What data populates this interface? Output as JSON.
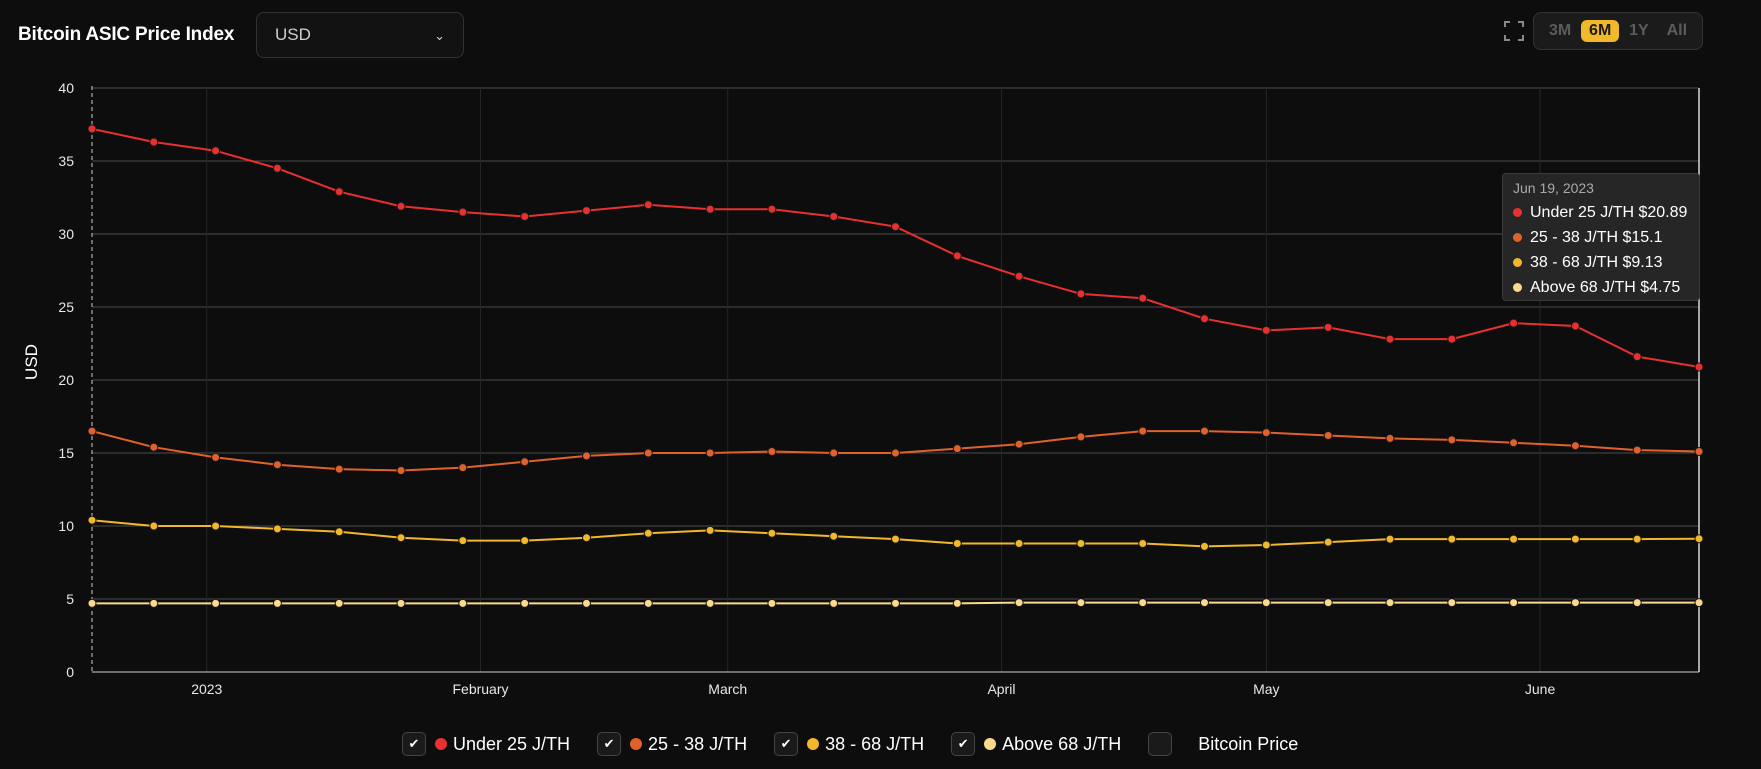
{
  "header": {
    "title": "Bitcoin ASIC Price Index",
    "currency_select": {
      "value": "USD",
      "icon": "chevron-down-icon"
    },
    "expand_icon": "expand-icon",
    "ranges": [
      {
        "label": "3M",
        "active": false
      },
      {
        "label": "6M",
        "active": true
      },
      {
        "label": "1Y",
        "active": false
      },
      {
        "label": "All",
        "active": false
      }
    ]
  },
  "colors": {
    "background": "#0d0d0d",
    "accent": "#f1b82c",
    "series": [
      "#e8302f",
      "#e0612c",
      "#f1b82c",
      "#fbd98d"
    ]
  },
  "tooltip": {
    "date": "Jun 19, 2023",
    "rows": [
      {
        "label": "Under 25 J/TH $20.89",
        "color": "#e8302f"
      },
      {
        "label": "25 - 38 J/TH $15.1",
        "color": "#e0612c"
      },
      {
        "label": "38 - 68 J/TH $9.13",
        "color": "#f1b82c"
      },
      {
        "label": "Above 68 J/TH $4.75",
        "color": "#fbd98d"
      }
    ]
  },
  "legend": [
    {
      "label": "Under 25 J/TH",
      "checked": true,
      "color": "#e8302f"
    },
    {
      "label": "25 - 38 J/TH",
      "checked": true,
      "color": "#e0612c"
    },
    {
      "label": "38 - 68 J/TH",
      "checked": true,
      "color": "#f1b82c"
    },
    {
      "label": "Above 68 J/TH",
      "checked": true,
      "color": "#fbd98d"
    },
    {
      "label": "Bitcoin Price",
      "checked": false,
      "color": ""
    }
  ],
  "chart_data": {
    "type": "line",
    "title": "Bitcoin ASIC Price Index",
    "ylabel": "USD",
    "xlabel": "",
    "ylim": [
      0,
      40
    ],
    "y_ticks": [
      0,
      5,
      10,
      15,
      20,
      25,
      30,
      35,
      40
    ],
    "xlim": [
      "2022-12-19",
      "2023-06-19"
    ],
    "x_ticks": [
      {
        "date": "2023-01-01",
        "label": "2023"
      },
      {
        "date": "2023-02-01",
        "label": "February"
      },
      {
        "date": "2023-03-01",
        "label": "March"
      },
      {
        "date": "2023-04-01",
        "label": "April"
      },
      {
        "date": "2023-05-01",
        "label": "May"
      },
      {
        "date": "2023-06-01",
        "label": "June"
      }
    ],
    "grid": true,
    "legend_position": "bottom",
    "x": [
      "2022-12-19",
      "2022-12-26",
      "2023-01-02",
      "2023-01-09",
      "2023-01-16",
      "2023-01-23",
      "2023-01-30",
      "2023-02-06",
      "2023-02-13",
      "2023-02-20",
      "2023-02-27",
      "2023-03-06",
      "2023-03-13",
      "2023-03-20",
      "2023-03-27",
      "2023-04-03",
      "2023-04-10",
      "2023-04-17",
      "2023-04-24",
      "2023-05-01",
      "2023-05-08",
      "2023-05-15",
      "2023-05-22",
      "2023-05-29",
      "2023-06-05",
      "2023-06-12",
      "2023-06-19"
    ],
    "series": [
      {
        "name": "Under 25 J/TH",
        "color": "#e8302f",
        "values": [
          37.2,
          36.3,
          35.7,
          34.5,
          32.9,
          31.9,
          31.5,
          31.2,
          31.6,
          32.0,
          31.7,
          31.7,
          31.2,
          30.5,
          28.5,
          27.1,
          25.9,
          25.6,
          24.2,
          23.4,
          23.6,
          22.8,
          22.8,
          23.9,
          23.7,
          21.6,
          20.89
        ]
      },
      {
        "name": "25 - 38 J/TH",
        "color": "#e0612c",
        "values": [
          16.5,
          15.4,
          14.7,
          14.2,
          13.9,
          13.8,
          14.0,
          14.4,
          14.8,
          15.0,
          15.0,
          15.1,
          15.0,
          15.0,
          15.3,
          15.6,
          16.1,
          16.5,
          16.5,
          16.4,
          16.2,
          16.0,
          15.9,
          15.7,
          15.5,
          15.2,
          15.1
        ]
      },
      {
        "name": "38 - 68 J/TH",
        "color": "#f1b82c",
        "values": [
          10.4,
          10.0,
          10.0,
          9.8,
          9.6,
          9.2,
          9.0,
          9.0,
          9.2,
          9.5,
          9.7,
          9.5,
          9.3,
          9.1,
          8.8,
          8.8,
          8.8,
          8.8,
          8.6,
          8.7,
          8.9,
          9.1,
          9.1,
          9.1,
          9.1,
          9.1,
          9.13
        ]
      },
      {
        "name": "Above 68 J/TH",
        "color": "#fbd98d",
        "values": [
          4.7,
          4.7,
          4.7,
          4.7,
          4.7,
          4.7,
          4.7,
          4.7,
          4.7,
          4.7,
          4.7,
          4.7,
          4.7,
          4.7,
          4.7,
          4.75,
          4.75,
          4.75,
          4.75,
          4.75,
          4.75,
          4.75,
          4.75,
          4.75,
          4.75,
          4.75,
          4.75
        ]
      }
    ],
    "cursor_date": "2023-06-19"
  }
}
